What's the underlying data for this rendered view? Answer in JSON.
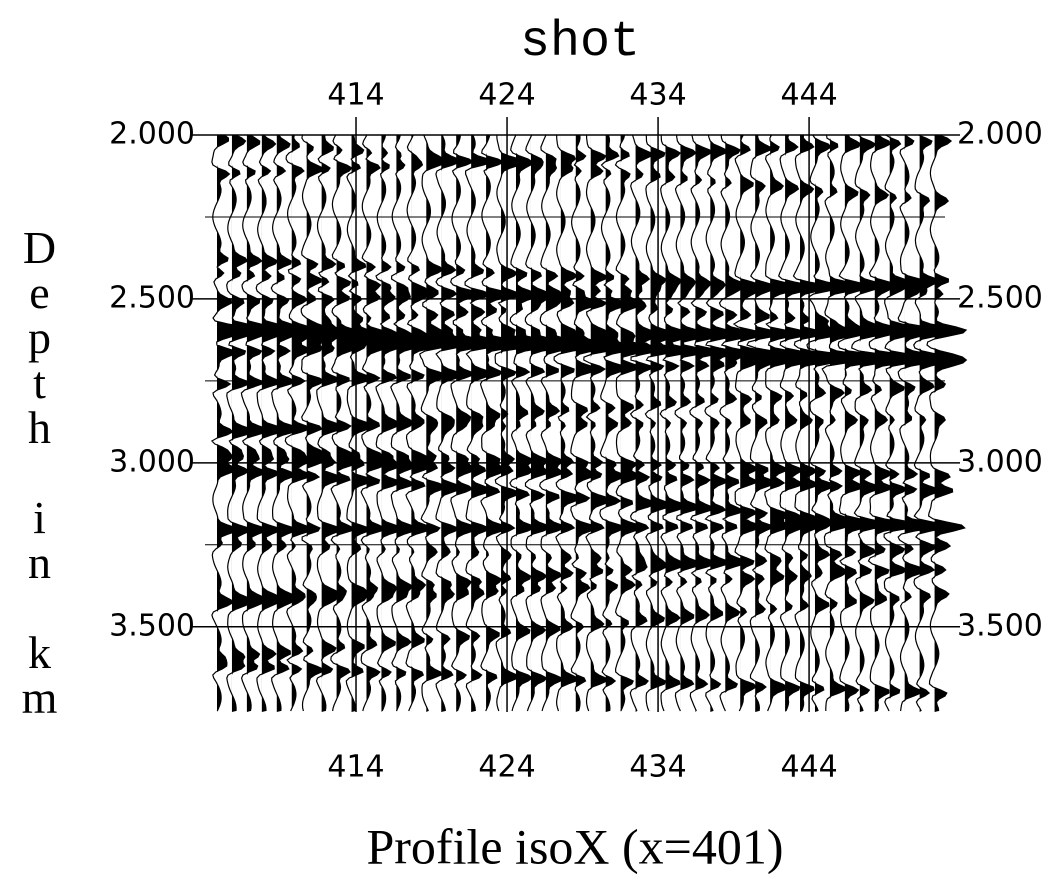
{
  "chart_data": {
    "type": "wiggle",
    "title": "shot",
    "x_label": "Profile isoX (x=401)",
    "y_label": "Depth in km",
    "xlim": [
      404,
      453
    ],
    "xticks": [
      414,
      424,
      434,
      444
    ],
    "ylim": [
      2.0,
      3.76
    ],
    "yticks": [
      {
        "value": 2.0,
        "label": "2.000"
      },
      {
        "value": 2.5,
        "label": "2.500"
      },
      {
        "value": 3.0,
        "label": "3.000"
      },
      {
        "value": 3.5,
        "label": "3.500"
      }
    ],
    "minor_yticks": [
      2.25,
      2.75,
      3.25
    ],
    "grid": true,
    "color": "#000000"
  }
}
